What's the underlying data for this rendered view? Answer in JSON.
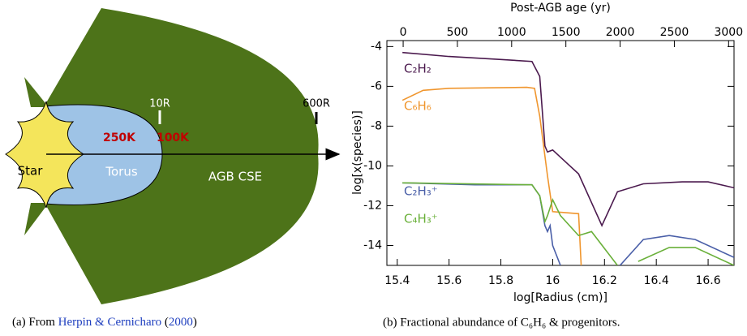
{
  "diagram": {
    "star": "Star",
    "torus": "Torus",
    "cse": "AGB CSE",
    "torus_temperature": "250K",
    "cse_temperature": "100K",
    "inner_radius": "10R",
    "outer_radius": "600R"
  },
  "captions": {
    "a": {
      "prefix": "(a) From ",
      "authors": "Herpin & Cernicharo",
      "open": " (",
      "year": "2000",
      "close": ")"
    },
    "b": "(b) Fractional abundance of C₆H₆ & progenitors."
  },
  "chart_data": {
    "type": "line",
    "x_label": "log[Radius (cm)]",
    "y_label": "log[x(species)]",
    "x2_label": "Post-AGB age (yr)",
    "xlim": [
      15.36,
      16.7
    ],
    "xticks": [
      15.4,
      15.6,
      15.8,
      16.0,
      16.2,
      16.4,
      16.6
    ],
    "x2lim": [
      -150,
      3050
    ],
    "x2ticks": [
      0,
      500,
      1000,
      1500,
      2000,
      2500,
      3000
    ],
    "ylim": [
      -15,
      -3.7
    ],
    "yticks": [
      -14,
      -12,
      -10,
      -8,
      -6,
      -4
    ],
    "series": [
      {
        "name": "C₂H₂",
        "color": "#4b1a4e",
        "x": [
          15.42,
          15.6,
          15.8,
          15.92,
          15.95,
          15.97,
          15.98,
          16.0,
          16.05,
          16.1,
          16.19,
          16.25,
          16.35,
          16.5,
          16.6,
          16.7
        ],
        "values": [
          -4.3,
          -4.5,
          -4.65,
          -4.75,
          -5.5,
          -9.0,
          -9.3,
          -9.2,
          -9.8,
          -10.4,
          -13.0,
          -11.3,
          -10.9,
          -10.8,
          -10.8,
          -11.1
        ]
      },
      {
        "name": "C₆H₆",
        "color": "#f0962e",
        "x": [
          15.42,
          15.5,
          15.6,
          15.9,
          15.93,
          15.95,
          15.98,
          16.0,
          16.1,
          16.11
        ],
        "values": [
          -6.7,
          -6.2,
          -6.1,
          -6.05,
          -6.1,
          -7.5,
          -10.5,
          -12.3,
          -12.4,
          -15
        ]
      },
      {
        "name": "C₂H₃⁺",
        "color": "#4a5fa8",
        "x": [
          15.42,
          15.7,
          15.92,
          15.95,
          15.97,
          15.98,
          15.99,
          16.0,
          16.03,
          16.2,
          16.26,
          16.35,
          16.45,
          16.55,
          16.7
        ],
        "values": [
          -10.85,
          -10.95,
          -10.95,
          -11.5,
          -13.0,
          -13.3,
          -13.0,
          -14.0,
          -15,
          null,
          -15,
          -13.7,
          -13.5,
          -13.7,
          -14.6
        ]
      },
      {
        "name": "C₄H₃⁺",
        "color": "#6ab03a",
        "x": [
          15.42,
          15.92,
          15.95,
          15.97,
          15.98,
          16.0,
          16.03,
          16.1,
          16.15,
          16.25,
          16.3,
          16.33,
          16.45,
          16.55,
          16.7
        ],
        "values": [
          -10.85,
          -10.95,
          -11.5,
          -12.8,
          -12.5,
          -11.7,
          -12.5,
          -13.5,
          -13.3,
          -15,
          null,
          -14.8,
          -14.1,
          -14.1,
          -15
        ]
      }
    ]
  }
}
